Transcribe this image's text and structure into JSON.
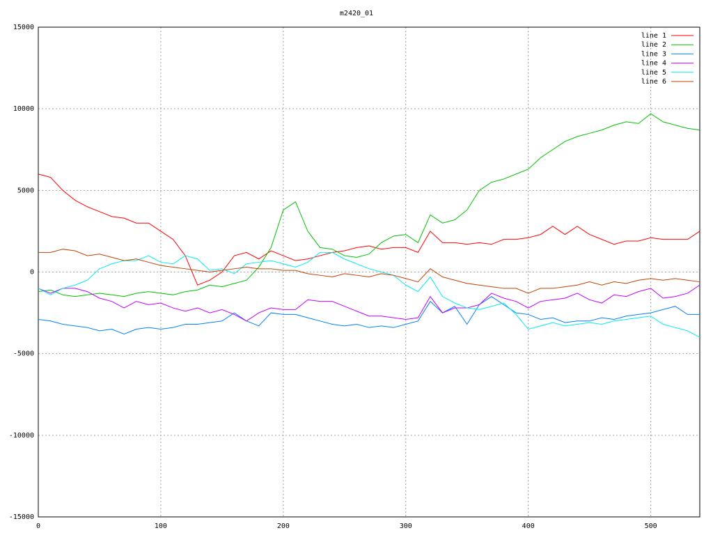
{
  "chart_data": {
    "type": "line",
    "title": "m2420_01",
    "x": [
      0,
      10,
      20,
      30,
      40,
      50,
      60,
      70,
      80,
      90,
      100,
      110,
      120,
      130,
      140,
      150,
      160,
      170,
      180,
      190,
      200,
      210,
      220,
      230,
      240,
      250,
      260,
      270,
      280,
      290,
      300,
      310,
      320,
      330,
      340,
      350,
      360,
      370,
      380,
      390,
      400,
      410,
      420,
      430,
      440,
      450,
      460,
      470,
      480,
      490,
      500,
      510,
      520,
      530,
      540
    ],
    "series": [
      {
        "name": "line 1",
        "color": "#ff0000",
        "values": [
          6000,
          5800,
          5000,
          4400,
          4000,
          3700,
          3400,
          3300,
          3000,
          3000,
          2500,
          2000,
          1000,
          -800,
          -500,
          0,
          1000,
          1200,
          800,
          1300,
          1000,
          700,
          800,
          1000,
          1200,
          1300,
          1500,
          1600,
          1400,
          1500,
          1500,
          1200,
          2500,
          1800,
          1800,
          1700,
          1800,
          1700,
          2000,
          2000,
          2100,
          2300,
          2800,
          2300,
          2800,
          2300,
          2000,
          1700,
          1900,
          1900,
          2100,
          2000,
          2000,
          2000,
          2500
        ]
      },
      {
        "name": "line 2",
        "color": "#00c000",
        "values": [
          -1200,
          -1100,
          -1400,
          -1500,
          -1400,
          -1300,
          -1400,
          -1500,
          -1300,
          -1200,
          -1300,
          -1400,
          -1200,
          -1100,
          -800,
          -900,
          -700,
          -500,
          300,
          1500,
          3800,
          4300,
          2500,
          1500,
          1400,
          1000,
          900,
          1100,
          1800,
          2200,
          2300,
          1800,
          3500,
          3000,
          3200,
          3800,
          5000,
          5500,
          5700,
          6000,
          6300,
          7000,
          7500,
          8000,
          8300,
          8500,
          8700,
          9000,
          9200,
          9100,
          9700,
          9200,
          9000,
          8800,
          8700
        ]
      },
      {
        "name": "line 3",
        "color": "#0080ff",
        "values": [
          -2900,
          -3000,
          -3200,
          -3300,
          -3400,
          -3600,
          -3500,
          -3800,
          -3500,
          -3400,
          -3500,
          -3400,
          -3200,
          -3200,
          -3100,
          -3000,
          -2500,
          -3000,
          -3300,
          -2500,
          -2600,
          -2600,
          -2800,
          -3000,
          -3200,
          -3300,
          -3200,
          -3400,
          -3300,
          -3400,
          -3200,
          -3000,
          -1800,
          -2500,
          -2100,
          -3200,
          -2000,
          -1500,
          -2000,
          -2500,
          -2600,
          -2900,
          -2800,
          -3100,
          -3000,
          -3000,
          -2800,
          -2900,
          -2700,
          -2600,
          -2500,
          -2300,
          -2100,
          -2600,
          -2600
        ]
      },
      {
        "name": "line 4",
        "color": "#c000ff",
        "values": [
          -1000,
          -1300,
          -1000,
          -1000,
          -1200,
          -1600,
          -1800,
          -2200,
          -1800,
          -2000,
          -1900,
          -2200,
          -2400,
          -2200,
          -2500,
          -2300,
          -2600,
          -3000,
          -2500,
          -2200,
          -2300,
          -2300,
          -1700,
          -1800,
          -1800,
          -2100,
          -2400,
          -2700,
          -2700,
          -2800,
          -2900,
          -2800,
          -1500,
          -2500,
          -2200,
          -2200,
          -2000,
          -1300,
          -1600,
          -1800,
          -2200,
          -1800,
          -1700,
          -1600,
          -1300,
          -1700,
          -1900,
          -1400,
          -1500,
          -1200,
          -1000,
          -1600,
          -1500,
          -1300,
          -800
        ]
      },
      {
        "name": "line 5",
        "color": "#00eeee",
        "values": [
          -1000,
          -1400,
          -1000,
          -800,
          -500,
          200,
          500,
          700,
          700,
          1000,
          600,
          500,
          1000,
          800,
          100,
          200,
          -100,
          500,
          600,
          700,
          500,
          300,
          600,
          1200,
          1200,
          800,
          500,
          200,
          0,
          -200,
          -800,
          -1200,
          -300,
          -1500,
          -1900,
          -2200,
          -2300,
          -2100,
          -1900,
          -2600,
          -3500,
          -3300,
          -3100,
          -3300,
          -3200,
          -3100,
          -3200,
          -3000,
          -2900,
          -2800,
          -2700,
          -3200,
          -3400,
          -3600,
          -4000
        ]
      },
      {
        "name": "line 6",
        "color": "#c04000",
        "values": [
          1200,
          1200,
          1400,
          1300,
          1000,
          1100,
          900,
          700,
          800,
          600,
          400,
          300,
          200,
          100,
          0,
          100,
          200,
          300,
          200,
          200,
          100,
          100,
          -100,
          -200,
          -300,
          -100,
          -200,
          -300,
          -100,
          -200,
          -400,
          -600,
          200,
          -300,
          -500,
          -700,
          -800,
          -900,
          -1000,
          -1000,
          -1300,
          -1000,
          -1000,
          -900,
          -800,
          -600,
          -800,
          -600,
          -700,
          -500,
          -400,
          -500,
          -400,
          -500,
          -600
        ]
      }
    ],
    "xlim": [
      0,
      540
    ],
    "ylim": [
      -15000,
      15000
    ],
    "xticks": [
      0,
      100,
      200,
      300,
      400,
      500
    ],
    "yticks": [
      -15000,
      -10000,
      -5000,
      0,
      5000,
      10000,
      15000
    ],
    "grid": true,
    "legend": "top-right"
  }
}
